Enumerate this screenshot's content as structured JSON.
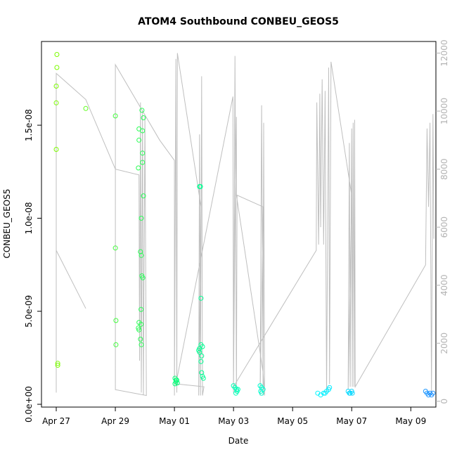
{
  "chart_data": {
    "type": "scatter",
    "title": "ATOM4 Southbound CONBEU_GEOS5",
    "xlabel": "Date",
    "ylabel": "CONBEU_GEOS5",
    "x_tick_labels": [
      "Apr 27",
      "Apr 29",
      "May 01",
      "May 03",
      "May 05",
      "May 07",
      "May 09"
    ],
    "x_tick_days": [
      0,
      2,
      4,
      6,
      8,
      10,
      12
    ],
    "x_range_days": [
      -0.5,
      12.85
    ],
    "y_tick_labels": [
      "0.0e+00",
      "5.0e-09",
      "1.0e-08",
      "1.5e-08"
    ],
    "y_ticks": [
      0,
      5e-09,
      1e-08,
      1.5e-08
    ],
    "ylim": [
      -1.5e-10,
      1.95e-08
    ],
    "y2_tick_labels": [
      "0",
      "2000",
      "4000",
      "6000",
      "8000",
      "10000",
      "12000"
    ],
    "y2_ticks": [
      0,
      2000,
      4000,
      6000,
      8000,
      10000,
      12000
    ],
    "y2lim": [
      -200,
      12400
    ],
    "colors": {
      "altitude_line": "#bfbfbf",
      "frame": "#000000",
      "right_axis": "#b3b3b3",
      "gradient": [
        "#7CFC00",
        "#00FF7F",
        "#00FFFF",
        "#1E90FF"
      ]
    },
    "scatter_points": [
      [
        0.02,
        1.88e-08
      ],
      [
        0.02,
        1.81e-08
      ],
      [
        0.0,
        1.71e-08
      ],
      [
        0.0,
        1.62e-08
      ],
      [
        0.0,
        1.37e-08
      ],
      [
        0.05,
        2.2e-09
      ],
      [
        0.05,
        2.1e-09
      ],
      [
        1.0,
        1.59e-08
      ],
      [
        2.0,
        1.55e-08
      ],
      [
        2.0,
        8.4e-09
      ],
      [
        2.02,
        4.5e-09
      ],
      [
        2.02,
        3.2e-09
      ],
      [
        2.8,
        1.48e-08
      ],
      [
        2.8,
        1.42e-08
      ],
      [
        2.78,
        1.27e-08
      ],
      [
        2.9,
        1.58e-08
      ],
      [
        2.95,
        1.54e-08
      ],
      [
        2.92,
        1.47e-08
      ],
      [
        2.92,
        1.35e-08
      ],
      [
        2.92,
        1.3e-08
      ],
      [
        2.95,
        1.12e-08
      ],
      [
        2.88,
        1e-08
      ],
      [
        2.85,
        8.2e-09
      ],
      [
        2.88,
        8e-09
      ],
      [
        2.9,
        6.9e-09
      ],
      [
        2.93,
        6.8e-09
      ],
      [
        2.87,
        5.1e-09
      ],
      [
        2.8,
        4.4e-09
      ],
      [
        2.78,
        4.1e-09
      ],
      [
        2.8,
        4e-09
      ],
      [
        2.87,
        4.3e-09
      ],
      [
        2.85,
        3.5e-09
      ],
      [
        2.88,
        3.2e-09
      ],
      [
        4.02,
        1.4e-09
      ],
      [
        4.05,
        1.3e-09
      ],
      [
        4.05,
        1.2e-09
      ],
      [
        4.08,
        1.3e-09
      ],
      [
        4.1,
        1.15e-09
      ],
      [
        4.02,
        1.1e-09
      ],
      [
        4.85,
        1.17e-08
      ],
      [
        4.88,
        1.17e-08
      ],
      [
        4.9,
        5.7e-09
      ],
      [
        4.9,
        3.2e-09
      ],
      [
        4.85,
        3e-09
      ],
      [
        4.82,
        2.9e-09
      ],
      [
        4.85,
        2.8e-09
      ],
      [
        4.95,
        3.1e-09
      ],
      [
        4.92,
        2.6e-09
      ],
      [
        4.9,
        2.3e-09
      ],
      [
        4.92,
        1.7e-09
      ],
      [
        4.95,
        1.5e-09
      ],
      [
        4.98,
        1.4e-09
      ],
      [
        6.0,
        1e-09
      ],
      [
        6.05,
        9e-10
      ],
      [
        6.1,
        8e-10
      ],
      [
        6.15,
        8e-10
      ],
      [
        6.08,
        6e-10
      ],
      [
        6.12,
        7e-10
      ],
      [
        6.9,
        1e-09
      ],
      [
        6.95,
        9e-10
      ],
      [
        7.0,
        8e-10
      ],
      [
        6.92,
        7e-10
      ],
      [
        6.95,
        6e-10
      ],
      [
        8.85,
        6e-10
      ],
      [
        8.95,
        5e-10
      ],
      [
        9.05,
        6e-10
      ],
      [
        9.15,
        7e-10
      ],
      [
        9.22,
        8e-10
      ],
      [
        9.25,
        9e-10
      ],
      [
        9.1,
        6e-10
      ],
      [
        9.88,
        7e-10
      ],
      [
        9.92,
        6e-10
      ],
      [
        9.95,
        6e-10
      ],
      [
        10.0,
        7e-10
      ],
      [
        10.02,
        6e-10
      ],
      [
        12.5,
        7e-10
      ],
      [
        12.55,
        6e-10
      ],
      [
        12.6,
        5e-10
      ],
      [
        12.65,
        6e-10
      ],
      [
        12.7,
        5e-10
      ],
      [
        12.75,
        6e-10
      ]
    ],
    "altitude_track": [
      [
        0.0,
        300
      ],
      [
        0.0,
        11300
      ],
      [
        1.0,
        10400
      ],
      [
        2.0,
        8000
      ],
      [
        2.8,
        7800
      ],
      [
        2.82,
        1400
      ],
      [
        2.85,
        10300
      ],
      [
        2.88,
        300
      ],
      [
        2.92,
        10000
      ],
      [
        2.95,
        200
      ],
      [
        3.0,
        9800
      ],
      [
        3.05,
        200
      ],
      [
        2.0,
        400
      ],
      [
        2.0,
        11600
      ],
      [
        3.5,
        9000
      ],
      [
        4.0,
        8300
      ],
      [
        4.0,
        200
      ],
      [
        4.05,
        11800
      ],
      [
        4.08,
        300
      ],
      [
        4.1,
        12000
      ],
      [
        4.9,
        6700
      ],
      [
        4.82,
        200
      ],
      [
        4.85,
        9200
      ],
      [
        4.88,
        200
      ],
      [
        4.92,
        11200
      ],
      [
        4.95,
        200
      ],
      [
        5.0,
        500
      ],
      [
        4.05,
        600
      ],
      [
        5.98,
        10500
      ],
      [
        6.0,
        300
      ],
      [
        6.05,
        11900
      ],
      [
        6.1,
        300
      ],
      [
        6.12,
        7100
      ],
      [
        7.0,
        6700
      ],
      [
        6.9,
        200
      ],
      [
        6.95,
        10200
      ],
      [
        7.0,
        200
      ],
      [
        7.02,
        9600
      ],
      [
        7.05,
        200
      ],
      [
        7.0,
        1000
      ],
      [
        6.1,
        7100
      ],
      [
        6.1,
        9800
      ],
      [
        6.05,
        6200
      ],
      [
        6.0,
        500
      ],
      [
        8.8,
        5200
      ],
      [
        8.82,
        10300
      ],
      [
        8.88,
        5400
      ],
      [
        8.92,
        10600
      ],
      [
        8.95,
        6000
      ],
      [
        9.0,
        11100
      ],
      [
        9.05,
        5400
      ],
      [
        9.1,
        10700
      ],
      [
        9.15,
        300
      ],
      [
        9.22,
        11500
      ],
      [
        9.25,
        600
      ],
      [
        9.3,
        11700
      ],
      [
        10.0,
        7100
      ],
      [
        9.88,
        400
      ],
      [
        9.92,
        8900
      ],
      [
        9.95,
        500
      ],
      [
        10.0,
        9400
      ],
      [
        10.02,
        500
      ],
      [
        10.05,
        9600
      ],
      [
        10.08,
        500
      ],
      [
        10.1,
        9700
      ],
      [
        10.12,
        500
      ],
      [
        12.5,
        4700
      ],
      [
        12.55,
        9400
      ],
      [
        12.6,
        6700
      ],
      [
        12.65,
        9600
      ],
      [
        12.7,
        300
      ],
      [
        12.75,
        9900
      ],
      [
        12.78,
        5600
      ]
    ],
    "side_line": [
      [
        0.0,
        5200
      ],
      [
        1.0,
        3200
      ]
    ]
  }
}
